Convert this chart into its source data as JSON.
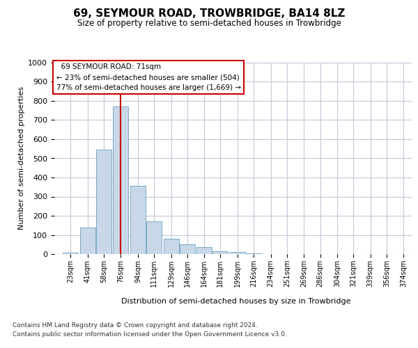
{
  "title1": "69, SEYMOUR ROAD, TROWBRIDGE, BA14 8LZ",
  "title2": "Size of property relative to semi-detached houses in Trowbridge",
  "xlabel": "Distribution of semi-detached houses by size in Trowbridge",
  "ylabel": "Number of semi-detached properties",
  "bar_values": [
    8,
    140,
    545,
    770,
    355,
    170,
    80,
    50,
    35,
    15,
    10,
    5,
    0,
    0,
    0,
    0,
    0,
    0,
    0,
    0,
    0
  ],
  "property_label": "69 SEYMOUR ROAD: 71sqm",
  "pct_smaller": 23,
  "count_smaller": 504,
  "pct_larger": 77,
  "count_larger": 1669,
  "bar_color": "#c8d8e8",
  "bar_edge_color": "#7aaac8",
  "vline_color": "#cc0000",
  "annotation_box_color": "#ffffff",
  "annotation_box_edge": "#cc0000",
  "grid_color": "#c0c8d8",
  "background_color": "#ffffff",
  "ylim": [
    0,
    1000
  ],
  "yticks": [
    0,
    100,
    200,
    300,
    400,
    500,
    600,
    700,
    800,
    900,
    1000
  ],
  "bar_positions": [
    23,
    41,
    58,
    76,
    94,
    111,
    129,
    146,
    164,
    181,
    199,
    216,
    234,
    251,
    269,
    286,
    304,
    321,
    339,
    356,
    374
  ],
  "bin_width": 17,
  "vline_x": 76,
  "footnote1": "Contains HM Land Registry data © Crown copyright and database right 2024.",
  "footnote2": "Contains public sector information licensed under the Open Government Licence v3.0."
}
